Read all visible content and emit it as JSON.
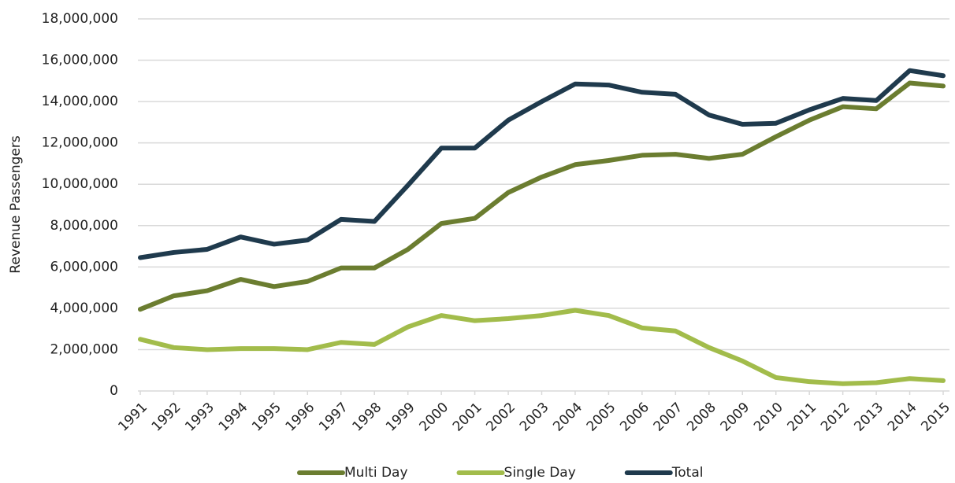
{
  "chart_data": {
    "type": "line",
    "y_label": "Revenue Passengers",
    "categories": [
      "1991",
      "1992",
      "1993",
      "1994",
      "1995",
      "1996",
      "1997",
      "1998",
      "1999",
      "2000",
      "2001",
      "2002",
      "2003",
      "2004",
      "2005",
      "2006",
      "2007",
      "2008",
      "2009",
      "2010",
      "2011",
      "2012",
      "2013",
      "2014",
      "2015"
    ],
    "series": [
      {
        "name": "Multi Day",
        "color": "#6b7d30",
        "values": [
          3950000,
          4600000,
          4850000,
          5400000,
          5050000,
          5300000,
          5950000,
          5950000,
          6850000,
          8100000,
          8350000,
          9600000,
          10350000,
          10950000,
          11150000,
          11400000,
          11450000,
          11250000,
          11450000,
          12300000,
          13100000,
          13750000,
          13650000,
          14900000,
          14750000
        ]
      },
      {
        "name": "Single Day",
        "color": "#a2bc4b",
        "values": [
          2500000,
          2100000,
          2000000,
          2050000,
          2050000,
          2000000,
          2350000,
          2250000,
          3100000,
          3650000,
          3400000,
          3500000,
          3650000,
          3900000,
          3650000,
          3050000,
          2900000,
          2100000,
          1450000,
          650000,
          450000,
          350000,
          400000,
          600000,
          500000
        ]
      },
      {
        "name": "Total",
        "color": "#1f3a4d",
        "values": [
          6450000,
          6700000,
          6850000,
          7450000,
          7100000,
          7300000,
          8300000,
          8200000,
          9950000,
          11750000,
          11750000,
          13100000,
          14000000,
          14850000,
          14800000,
          14450000,
          14350000,
          13350000,
          12900000,
          12950000,
          13600000,
          14150000,
          14050000,
          15500000,
          15250000
        ]
      }
    ],
    "ylim": [
      0,
      18000000
    ],
    "yticks": [
      0,
      {
        "value": 2000000,
        "label": "2,000,000"
      },
      {
        "value": 4000000,
        "label": "4,000,000"
      },
      {
        "value": 6000000,
        "label": "6,000,000"
      },
      {
        "value": 8000000,
        "label": "8,000,000"
      },
      {
        "value": 10000000,
        "label": "10,000,000"
      },
      {
        "value": 12000000,
        "label": "12,000,000"
      },
      {
        "value": 14000000,
        "label": "14,000,000"
      },
      {
        "value": 16000000,
        "label": "16,000,000"
      },
      {
        "value": 18000000,
        "label": "18,000,000"
      }
    ],
    "grid": true,
    "legend": "bottom"
  }
}
